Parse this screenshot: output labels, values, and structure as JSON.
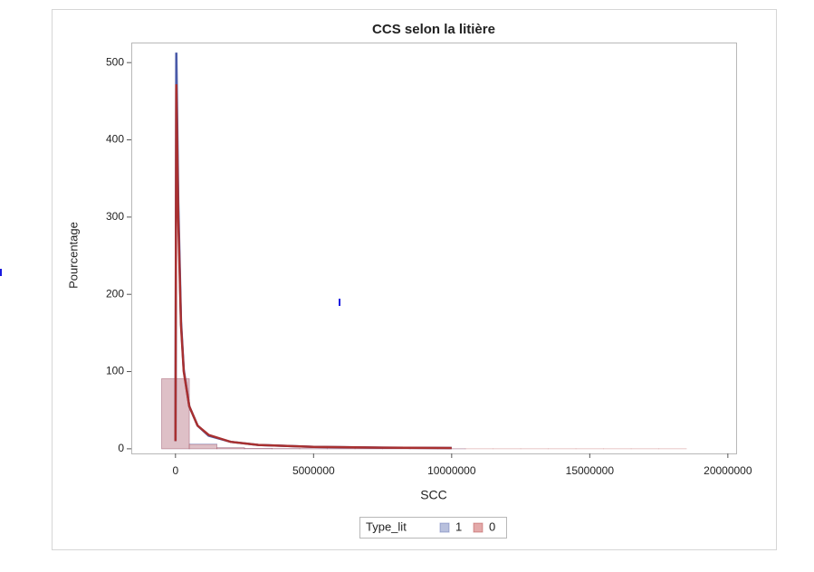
{
  "chart_data": {
    "type": "histogram",
    "title": "CCS selon la litière",
    "xlabel": "SCC",
    "ylabel": "Pourcentage",
    "bins": [
      -500000,
      500000,
      1500000,
      2500000,
      3500000,
      4500000,
      5500000,
      6500000,
      7500000,
      8500000,
      9500000,
      10500000,
      11500000,
      12500000,
      13500000,
      14500000,
      15500000,
      16500000,
      17500000,
      18500000
    ],
    "xlim": [
      -1600000,
      20300000
    ],
    "ylim": [
      -6,
      526
    ],
    "xticks": [
      0,
      5000000,
      10000000,
      15000000,
      20000000
    ],
    "yticks": [
      0,
      100,
      200,
      300,
      400,
      500
    ],
    "legend_title": "Type_lit",
    "series": [
      {
        "name": "1",
        "color": "#b8c0dd",
        "curve_color": "#4a5aa8",
        "values": [
          90.5,
          6.5,
          1.5,
          0.6,
          0.3,
          0.2,
          0.1,
          0.1,
          0.05,
          0.05,
          0.05,
          0,
          0,
          0,
          0,
          0,
          0,
          0,
          0
        ],
        "curve_x": [
          0,
          30000,
          100000,
          200000,
          300000,
          500000,
          800000,
          1200000,
          2000000,
          3000000,
          5000000,
          7500000,
          10000000
        ],
        "curve_values": [
          10,
          513,
          320,
          165,
          102,
          55,
          30,
          17,
          9,
          5,
          2.5,
          1.5,
          1
        ]
      },
      {
        "name": "0",
        "color": "#e3a9a9",
        "curve_color": "#a83030",
        "values": [
          91,
          5.5,
          1.3,
          0.5,
          0.3,
          0.2,
          0.1,
          0.1,
          0.1,
          0.05,
          0.05,
          0.05,
          0.05,
          0.05,
          0.05,
          0.05,
          0.05,
          0.05,
          0.05
        ],
        "curve_x": [
          0,
          30000,
          100000,
          200000,
          300000,
          500000,
          800000,
          1200000,
          2000000,
          3000000,
          5000000,
          7500000,
          10000000
        ],
        "curve_values": [
          10,
          472,
          300,
          160,
          100,
          55,
          30,
          18,
          9,
          5,
          2.5,
          1.5,
          1
        ]
      }
    ]
  }
}
